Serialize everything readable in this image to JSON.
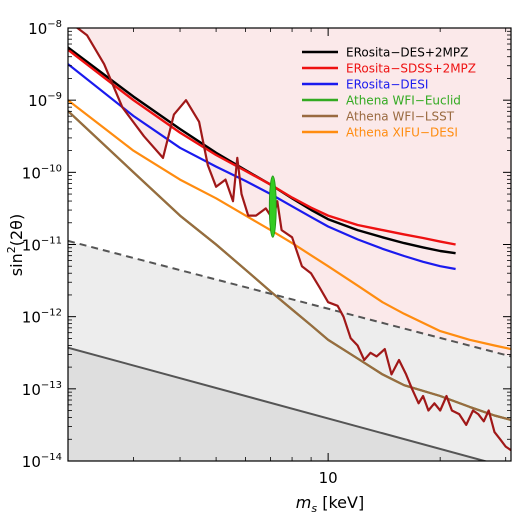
{
  "chart_data": {
    "type": "line",
    "title": "",
    "xlabel_symbol": "m",
    "xlabel_sub": "s",
    "xlabel_unit": " [keV]",
    "ylabel_base": "sin",
    "ylabel_sup": "2",
    "ylabel_arg": "(2θ)",
    "x_scale": "log",
    "y_scale": "log",
    "xlim": [
      2.0,
      31.0
    ],
    "ylim_exp": [
      -14,
      -8
    ],
    "x_ticks": [
      {
        "value": 10,
        "label": "10"
      }
    ],
    "y_ticks": [
      {
        "exp": -14,
        "base": "10",
        "sup": "−14"
      },
      {
        "exp": -13,
        "base": "10",
        "sup": "−13"
      },
      {
        "exp": -12,
        "base": "10",
        "sup": "−12"
      },
      {
        "exp": -11,
        "base": "10",
        "sup": "−11"
      },
      {
        "exp": -10,
        "base": "10",
        "sup": "−10"
      },
      {
        "exp": -9,
        "base": "10",
        "sup": "−9"
      },
      {
        "exp": -8,
        "base": "10",
        "sup": "−8"
      }
    ],
    "grid": false,
    "legend_position": "top-right",
    "regions": [
      {
        "kind": "excluded-above",
        "color": "#fbe9ea",
        "boundary": [
          [
            2.0,
            -7.9
          ],
          [
            2.25,
            -8.1
          ],
          [
            2.5,
            -8.5
          ],
          [
            2.8,
            -9.1
          ],
          [
            3.2,
            -9.5
          ],
          [
            3.6,
            -9.8
          ],
          [
            3.85,
            -9.2
          ],
          [
            4.15,
            -9.0
          ],
          [
            4.5,
            -9.3
          ],
          [
            4.75,
            -9.9
          ],
          [
            5.0,
            -10.2
          ],
          [
            5.3,
            -10.1
          ],
          [
            5.55,
            -10.4
          ],
          [
            5.7,
            -9.8
          ],
          [
            5.85,
            -10.3
          ],
          [
            6.1,
            -10.6
          ],
          [
            6.4,
            -10.6
          ],
          [
            6.8,
            -10.5
          ],
          [
            7.1,
            -10.65
          ],
          [
            7.3,
            -10.4
          ],
          [
            7.5,
            -10.8
          ],
          [
            8.0,
            -10.9
          ],
          [
            8.5,
            -11.3
          ],
          [
            9.0,
            -11.4
          ],
          [
            9.5,
            -11.6
          ],
          [
            10.0,
            -11.8
          ],
          [
            10.6,
            -11.85
          ],
          [
            11.0,
            -12.0
          ],
          [
            11.5,
            -12.3
          ],
          [
            12.0,
            -12.4
          ],
          [
            12.5,
            -12.6
          ],
          [
            13.0,
            -12.5
          ],
          [
            13.5,
            -12.55
          ],
          [
            14.2,
            -12.45
          ],
          [
            14.8,
            -12.8
          ],
          [
            15.5,
            -12.6
          ],
          [
            16.2,
            -12.8
          ],
          [
            16.8,
            -13.0
          ],
          [
            17.5,
            -13.2
          ],
          [
            18.0,
            -13.1
          ],
          [
            18.6,
            -13.3
          ],
          [
            19.3,
            -13.2
          ],
          [
            20.0,
            -13.3
          ],
          [
            20.8,
            -13.1
          ],
          [
            21.5,
            -13.3
          ],
          [
            22.5,
            -13.35
          ],
          [
            23.5,
            -13.5
          ],
          [
            24.5,
            -13.3
          ],
          [
            25.3,
            -13.35
          ],
          [
            26.2,
            -13.45
          ],
          [
            27.0,
            -13.3
          ],
          [
            28.0,
            -13.6
          ],
          [
            29.0,
            -13.7
          ],
          [
            30.0,
            -13.8
          ],
          [
            31.0,
            -13.85
          ]
        ]
      },
      {
        "kind": "excluded-below",
        "color": "#ededed",
        "boundary": [
          [
            2.0,
            -10.95
          ],
          [
            31.0,
            -12.55
          ]
        ]
      },
      {
        "kind": "excluded-below",
        "color": "#dedede",
        "boundary": [
          [
            2.0,
            -12.43
          ],
          [
            31.0,
            -14.1
          ]
        ]
      }
    ],
    "series": [
      {
        "name": "ERosita−DES+2MPZ",
        "color": "#000000",
        "width": 2.4,
        "in_legend": true,
        "points": [
          [
            2.0,
            -8.27
          ],
          [
            3.0,
            -8.95
          ],
          [
            4.0,
            -9.4
          ],
          [
            5.0,
            -9.73
          ],
          [
            6.0,
            -9.97
          ],
          [
            7.0,
            -10.17
          ],
          [
            8.0,
            -10.36
          ],
          [
            9.0,
            -10.52
          ],
          [
            10.0,
            -10.65
          ],
          [
            12.0,
            -10.8
          ],
          [
            14.0,
            -10.9
          ],
          [
            16.0,
            -10.98
          ],
          [
            18.0,
            -11.04
          ],
          [
            20.0,
            -11.09
          ],
          [
            22.0,
            -11.12
          ]
        ]
      },
      {
        "name": "ERosita−SDSS+2MPZ",
        "color": "#ee1111",
        "width": 2.4,
        "in_legend": true,
        "points": [
          [
            2.0,
            -8.3
          ],
          [
            3.0,
            -9.0
          ],
          [
            4.0,
            -9.45
          ],
          [
            5.0,
            -9.76
          ],
          [
            6.0,
            -9.98
          ],
          [
            7.0,
            -10.17
          ],
          [
            8.0,
            -10.35
          ],
          [
            9.0,
            -10.49
          ],
          [
            10.0,
            -10.6
          ],
          [
            12.0,
            -10.73
          ],
          [
            14.0,
            -10.8
          ],
          [
            16.0,
            -10.86
          ],
          [
            18.0,
            -10.91
          ],
          [
            20.0,
            -10.96
          ],
          [
            22.0,
            -11.0
          ]
        ]
      },
      {
        "name": "ERosita−DESI",
        "color": "#1a1aee",
        "width": 2.2,
        "in_legend": true,
        "points": [
          [
            2.0,
            -8.5
          ],
          [
            3.0,
            -9.22
          ],
          [
            4.0,
            -9.66
          ],
          [
            5.0,
            -9.92
          ],
          [
            6.0,
            -10.12
          ],
          [
            7.0,
            -10.3
          ],
          [
            8.0,
            -10.47
          ],
          [
            9.0,
            -10.62
          ],
          [
            10.0,
            -10.75
          ],
          [
            12.0,
            -10.93
          ],
          [
            14.0,
            -11.06
          ],
          [
            16.0,
            -11.16
          ],
          [
            18.0,
            -11.24
          ],
          [
            20.0,
            -11.3
          ],
          [
            22.0,
            -11.34
          ]
        ]
      },
      {
        "name": "Athena WFI−Euclid",
        "color": "#33aa22",
        "width": 2.2,
        "in_legend": true,
        "points": [
          [
            2.0,
            -9.15
          ],
          [
            3.0,
            -10.0
          ],
          [
            4.0,
            -10.6
          ],
          [
            5.0,
            -11.0
          ],
          [
            6.0,
            -11.35
          ],
          [
            7.0,
            -11.65
          ],
          [
            8.0,
            -11.9
          ],
          [
            9.0,
            -12.12
          ],
          [
            10.0,
            -12.32
          ],
          [
            12.0,
            -12.58
          ],
          [
            14.0,
            -12.8
          ],
          [
            16.0,
            -12.95
          ],
          [
            20.0,
            -13.1
          ],
          [
            24.0,
            -13.25
          ],
          [
            28.0,
            -13.37
          ],
          [
            31.0,
            -13.43
          ]
        ]
      },
      {
        "name": "Athena WFI−LSST",
        "color": "#9a6a40",
        "width": 2.2,
        "in_legend": true,
        "points": [
          [
            2.0,
            -9.15
          ],
          [
            3.0,
            -10.0
          ],
          [
            4.0,
            -10.6
          ],
          [
            5.0,
            -11.0
          ],
          [
            6.0,
            -11.35
          ],
          [
            7.0,
            -11.65
          ],
          [
            8.0,
            -11.9
          ],
          [
            9.0,
            -12.12
          ],
          [
            10.0,
            -12.32
          ],
          [
            12.0,
            -12.58
          ],
          [
            14.0,
            -12.8
          ],
          [
            16.0,
            -12.95
          ],
          [
            20.0,
            -13.1
          ],
          [
            24.0,
            -13.25
          ],
          [
            28.0,
            -13.37
          ],
          [
            31.0,
            -13.43
          ]
        ]
      },
      {
        "name": "Athena XIFU−DESI",
        "color": "#ff8c10",
        "width": 2.2,
        "in_legend": true,
        "points": [
          [
            2.0,
            -9.0
          ],
          [
            3.0,
            -9.7
          ],
          [
            4.0,
            -10.1
          ],
          [
            5.0,
            -10.36
          ],
          [
            6.0,
            -10.6
          ],
          [
            7.0,
            -10.8
          ],
          [
            8.0,
            -10.98
          ],
          [
            9.0,
            -11.15
          ],
          [
            10.0,
            -11.3
          ],
          [
            12.0,
            -11.57
          ],
          [
            14.0,
            -11.8
          ],
          [
            16.0,
            -11.96
          ],
          [
            20.0,
            -12.2
          ],
          [
            24.0,
            -12.32
          ],
          [
            28.0,
            -12.4
          ],
          [
            31.0,
            -12.45
          ]
        ]
      },
      {
        "name": "",
        "color": "#555555",
        "width": 2.0,
        "dash": "7,5",
        "in_legend": false,
        "points": [
          [
            2.0,
            -10.95
          ],
          [
            31.0,
            -12.55
          ]
        ]
      },
      {
        "name": "",
        "color": "#555555",
        "width": 2.0,
        "in_legend": false,
        "points": [
          [
            2.0,
            -12.43
          ],
          [
            31.0,
            -14.1
          ]
        ]
      },
      {
        "name": "",
        "color": "#a01818",
        "width": 2.2,
        "in_legend": false,
        "points": [
          [
            2.0,
            -7.9
          ],
          [
            2.25,
            -8.1
          ],
          [
            2.5,
            -8.5
          ],
          [
            2.8,
            -9.1
          ],
          [
            3.2,
            -9.5
          ],
          [
            3.6,
            -9.8
          ],
          [
            3.85,
            -9.2
          ],
          [
            4.15,
            -9.0
          ],
          [
            4.5,
            -9.3
          ],
          [
            4.75,
            -9.9
          ],
          [
            5.0,
            -10.2
          ],
          [
            5.3,
            -10.1
          ],
          [
            5.55,
            -10.4
          ],
          [
            5.7,
            -9.8
          ],
          [
            5.85,
            -10.3
          ],
          [
            6.1,
            -10.6
          ],
          [
            6.4,
            -10.6
          ],
          [
            6.8,
            -10.5
          ],
          [
            7.1,
            -10.65
          ],
          [
            7.3,
            -10.4
          ],
          [
            7.5,
            -10.8
          ],
          [
            8.0,
            -10.9
          ],
          [
            8.5,
            -11.3
          ],
          [
            9.0,
            -11.4
          ],
          [
            9.5,
            -11.6
          ],
          [
            10.0,
            -11.8
          ],
          [
            10.6,
            -11.85
          ],
          [
            11.0,
            -12.0
          ],
          [
            11.5,
            -12.3
          ],
          [
            12.0,
            -12.4
          ],
          [
            12.5,
            -12.6
          ],
          [
            13.0,
            -12.5
          ],
          [
            13.5,
            -12.55
          ],
          [
            14.2,
            -12.45
          ],
          [
            14.8,
            -12.8
          ],
          [
            15.5,
            -12.6
          ],
          [
            16.2,
            -12.8
          ],
          [
            16.8,
            -13.0
          ],
          [
            17.5,
            -13.2
          ],
          [
            18.0,
            -13.1
          ],
          [
            18.6,
            -13.3
          ],
          [
            19.3,
            -13.2
          ],
          [
            20.0,
            -13.3
          ],
          [
            20.8,
            -13.1
          ],
          [
            21.5,
            -13.3
          ],
          [
            22.5,
            -13.35
          ],
          [
            23.5,
            -13.5
          ],
          [
            24.5,
            -13.3
          ],
          [
            25.3,
            -13.35
          ],
          [
            26.2,
            -13.45
          ],
          [
            27.0,
            -13.3
          ],
          [
            28.0,
            -13.6
          ],
          [
            29.0,
            -13.7
          ],
          [
            30.0,
            -13.8
          ],
          [
            31.0,
            -13.85
          ]
        ]
      }
    ],
    "markers": [
      {
        "kind": "ellipse",
        "color": "#33cc22",
        "x": 7.1,
        "y_exp": -10.6,
        "y_range_exp": [
          -10.9,
          -10.05
        ]
      }
    ],
    "legend": [
      {
        "label": "ERosita−DES+2MPZ",
        "color": "#000000"
      },
      {
        "label": "ERosita−SDSS+2MPZ",
        "color": "#ee1111"
      },
      {
        "label": "ERosita−DESI",
        "color": "#1a1aee"
      },
      {
        "label": "Athena WFI−Euclid",
        "color": "#33aa22"
      },
      {
        "label": "Athena WFI−LSST",
        "color": "#9a6a40"
      },
      {
        "label": "Athena XIFU−DESI",
        "color": "#ff8c10"
      }
    ]
  }
}
